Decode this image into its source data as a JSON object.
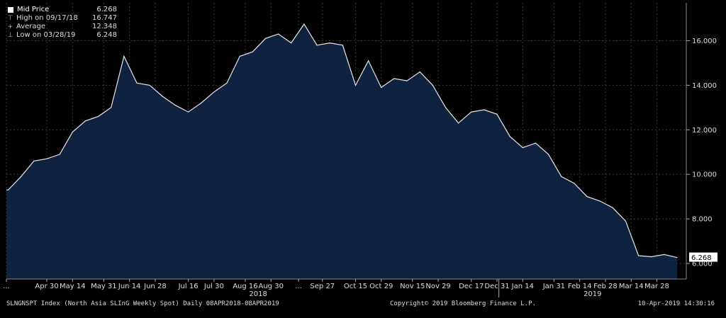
{
  "chart_data": {
    "type": "area",
    "series": [
      {
        "name": "Mid Price",
        "dates": [
          "2018-04-09",
          "2018-04-16",
          "2018-04-23",
          "2018-04-30",
          "2018-05-07",
          "2018-05-14",
          "2018-05-21",
          "2018-05-28",
          "2018-06-04",
          "2018-06-11",
          "2018-06-18",
          "2018-06-25",
          "2018-07-02",
          "2018-07-09",
          "2018-07-16",
          "2018-07-23",
          "2018-07-30",
          "2018-08-06",
          "2018-08-13",
          "2018-08-20",
          "2018-08-27",
          "2018-09-03",
          "2018-09-10",
          "2018-09-17",
          "2018-09-24",
          "2018-10-01",
          "2018-10-08",
          "2018-10-15",
          "2018-10-22",
          "2018-10-29",
          "2018-11-05",
          "2018-11-12",
          "2018-11-19",
          "2018-11-26",
          "2018-12-03",
          "2018-12-10",
          "2018-12-17",
          "2018-12-24",
          "2018-12-31",
          "2019-01-07",
          "2019-01-14",
          "2019-01-21",
          "2019-01-28",
          "2019-02-04",
          "2019-02-11",
          "2019-02-18",
          "2019-02-25",
          "2019-03-04",
          "2019-03-11",
          "2019-03-18",
          "2019-03-25",
          "2019-04-01",
          "2019-04-08"
        ],
        "values": [
          9.3,
          9.9,
          10.6,
          10.7,
          10.9,
          11.9,
          12.4,
          12.6,
          13.0,
          15.3,
          14.1,
          14.0,
          13.5,
          13.1,
          12.8,
          13.2,
          13.7,
          14.1,
          15.3,
          15.5,
          16.1,
          16.3,
          15.9,
          16.747,
          15.8,
          15.9,
          15.8,
          14.0,
          15.1,
          13.9,
          14.3,
          14.2,
          14.6,
          14.0,
          13.0,
          12.3,
          12.8,
          12.9,
          12.7,
          11.7,
          11.2,
          11.4,
          10.9,
          9.9,
          9.6,
          9.0,
          8.8,
          8.5,
          7.9,
          6.35,
          6.3,
          6.4,
          6.268
        ]
      }
    ],
    "legend": [
      {
        "name": "Mid Price",
        "value": "6.268"
      },
      {
        "name": "High on 09/17/18",
        "value": "16.747"
      },
      {
        "name": "Average",
        "value": "12.348"
      },
      {
        "name": "Low on 03/28/19",
        "value": "6.248"
      }
    ],
    "ylim": [
      5.3,
      17.7
    ],
    "xlim": [
      "2018-04-08",
      "2019-04-13"
    ],
    "y_ticks": [
      "6.000",
      "8.000",
      "10.000",
      "12.000",
      "14.000",
      "16.000"
    ],
    "x_ticks": [
      {
        "date": "2018-04-08",
        "label": "..."
      },
      {
        "date": "2018-04-30",
        "label": "Apr 30"
      },
      {
        "date": "2018-05-14",
        "label": "May 14"
      },
      {
        "date": "2018-05-31",
        "label": "May 31"
      },
      {
        "date": "2018-06-14",
        "label": "Jun 14"
      },
      {
        "date": "2018-06-28",
        "label": "Jun 28"
      },
      {
        "date": "2018-07-16",
        "label": "Jul 16"
      },
      {
        "date": "2018-07-30",
        "label": "Jul 30"
      },
      {
        "date": "2018-08-16",
        "label": "Aug 16"
      },
      {
        "date": "2018-08-30",
        "label": "Aug 30"
      },
      {
        "date": "2018-09-14",
        "label": "..."
      },
      {
        "date": "2018-09-27",
        "label": "Sep 27"
      },
      {
        "date": "2018-10-15",
        "label": "Oct 15"
      },
      {
        "date": "2018-10-29",
        "label": "Oct 29"
      },
      {
        "date": "2018-11-15",
        "label": "Nov 15"
      },
      {
        "date": "2018-11-29",
        "label": "Nov 29"
      },
      {
        "date": "2018-12-17",
        "label": "Dec 17"
      },
      {
        "date": "2018-12-31",
        "label": "Dec 31"
      },
      {
        "date": "2019-01-14",
        "label": "Jan 14"
      },
      {
        "date": "2019-01-31",
        "label": "Jan 31"
      },
      {
        "date": "2019-02-14",
        "label": "Feb 14"
      },
      {
        "date": "2019-02-28",
        "label": "Feb 28"
      },
      {
        "date": "2019-03-14",
        "label": "Mar 14"
      },
      {
        "date": "2019-03-28",
        "label": "Mar 28"
      }
    ],
    "year_labels": [
      {
        "date": "2018-08-23",
        "label": "2018"
      },
      {
        "date": "2019-02-21",
        "label": "2019"
      }
    ],
    "year_divider_date": "2019-01-01",
    "last_value_label": "6.268",
    "grid": true,
    "legend_position": "top-left",
    "colors": {
      "fill": "#0f2341",
      "line": "#e6e6e6",
      "background": "#000000",
      "grid": "#3a3a3a",
      "value_tag": "#ffffff"
    }
  },
  "footer": {
    "left": "SLNGNSPT Index (North Asia SLInG Weekly Spot)  Daily 08APR2018-08APR2019",
    "center": "Copyright© 2019 Bloomberg Finance L.P.",
    "right": "10-Apr-2019 14:30:16"
  },
  "icons": {
    "legend_toggle": "minus-square-icon"
  }
}
